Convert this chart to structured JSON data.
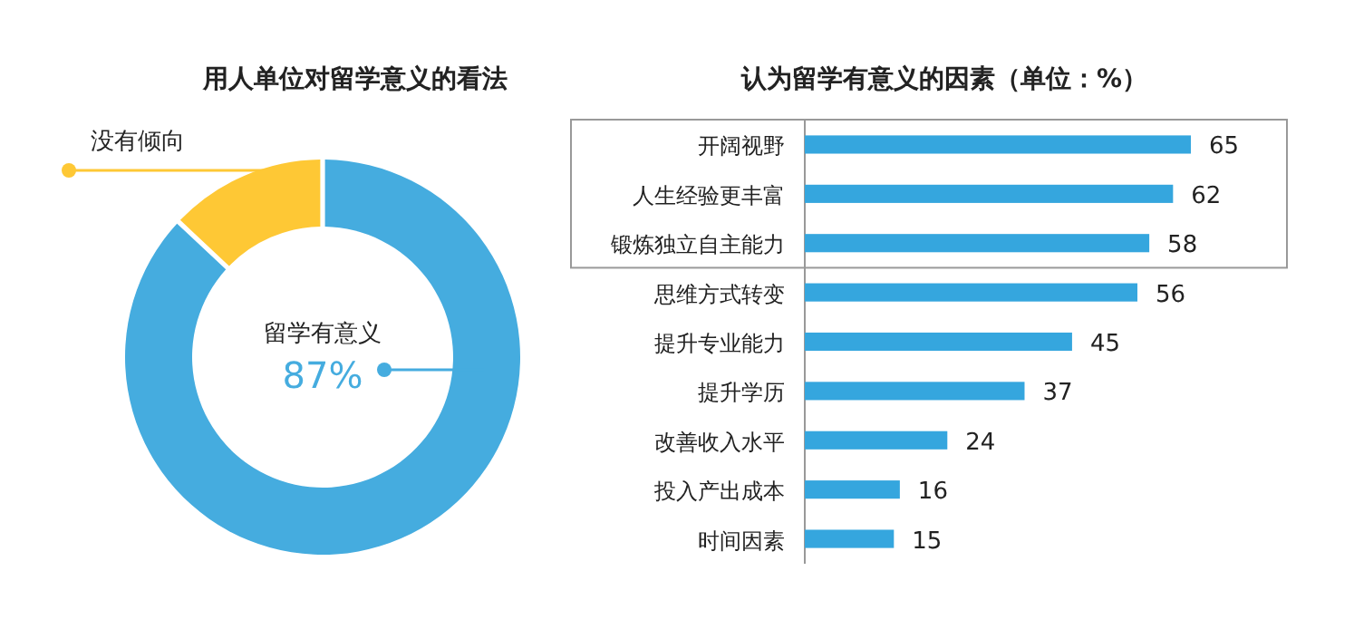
{
  "chart_data": [
    {
      "type": "donut",
      "title": "用人单位对留学意义的看法",
      "categories": [
        "留学有意义",
        "没有倾向"
      ],
      "values": [
        87,
        13
      ],
      "colors": [
        "#45acdf",
        "#fec835"
      ],
      "value_labels": [
        "87%",
        null
      ]
    },
    {
      "type": "bar",
      "orientation": "horizontal",
      "title": "认为留学有意义的因素（单位：%）",
      "categories": [
        "开阔视野",
        "人生经验更丰富",
        "锻炼独立自主能力",
        "思维方式转变",
        "提升专业能力",
        "提升学历",
        "改善收入水平",
        "投入产出成本",
        "时间因素"
      ],
      "values": [
        65,
        62,
        58,
        56,
        45,
        37,
        24,
        16,
        15
      ],
      "color": "#35a6de",
      "data_labels": true
    }
  ]
}
